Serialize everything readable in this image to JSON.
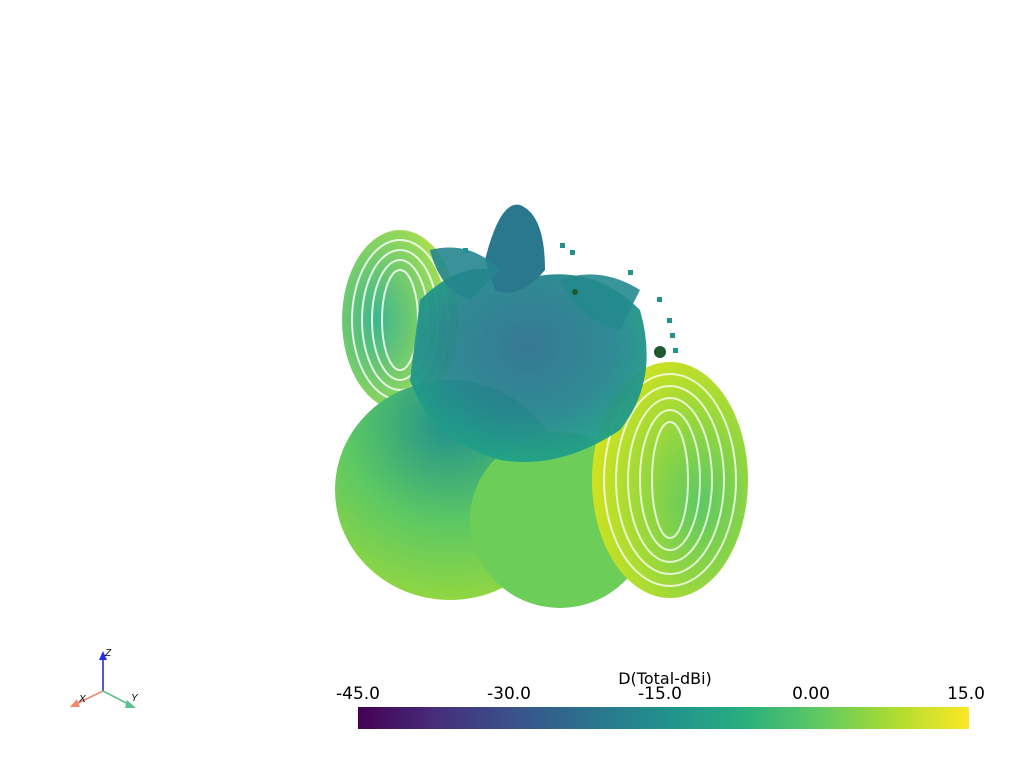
{
  "scalar_bar": {
    "title": "D(Total-dBi)",
    "ticks": [
      "-45.0",
      "-30.0",
      "-15.0",
      "0.00",
      "15.0"
    ],
    "range": [
      -45.0,
      15.0
    ],
    "colormap": "viridis"
  },
  "orientation_axes": {
    "x_label": "X",
    "y_label": "Y",
    "z_label": "Z",
    "x_color": "#f08a6e",
    "y_color": "#5cc18a",
    "z_color": "#1f2ee0"
  },
  "colors": {
    "background": "#ffffff",
    "colormap_low": "#440154",
    "colormap_mid": "#21908d",
    "colormap_high": "#fde725"
  }
}
